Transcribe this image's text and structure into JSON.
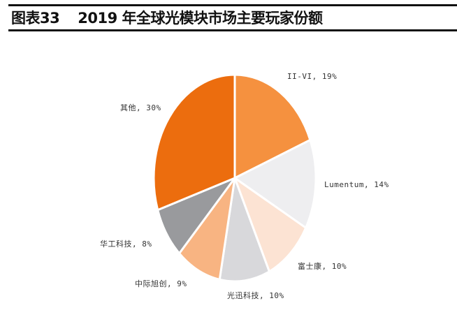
{
  "header": {
    "figure_no": "图表33",
    "title": "2019 年全球光模块市场主要玩家份额"
  },
  "chart_data": {
    "type": "pie",
    "title": "2019 年全球光模块市场主要玩家份额",
    "start_angle_deg": 0,
    "direction": "clockwise",
    "slices": [
      {
        "name": "II-VI",
        "value": 19,
        "label": "II-VI, 19%",
        "color": "#F5913F"
      },
      {
        "name": "Lumentum",
        "value": 14,
        "label": "Lumentum, 14%",
        "color": "#EEEEF0"
      },
      {
        "name": "富士康",
        "value": 10,
        "label": "富士康, 10%",
        "color": "#FCE3D3"
      },
      {
        "name": "光迅科技",
        "value": 10,
        "label": "光迅科技, 10%",
        "color": "#D8D8DB"
      },
      {
        "name": "中际旭创",
        "value": 9,
        "label": "中际旭创, 9%",
        "color": "#F8B482"
      },
      {
        "name": "华工科技",
        "value": 8,
        "label": "华工科技, 8%",
        "color": "#999A9D"
      },
      {
        "name": "其他",
        "value": 30,
        "label": "其他, 30%",
        "color": "#EC6D0E"
      }
    ]
  },
  "labels": {
    "ii_vi": "II-VI, 19%",
    "lumentum": "Lumentum, 14%",
    "foxconn": "富士康, 10%",
    "accelink": "光迅科技, 10%",
    "innolight": "中际旭创, 9%",
    "hgtech": "华工科技, 8%",
    "others": "其他, 30%"
  }
}
